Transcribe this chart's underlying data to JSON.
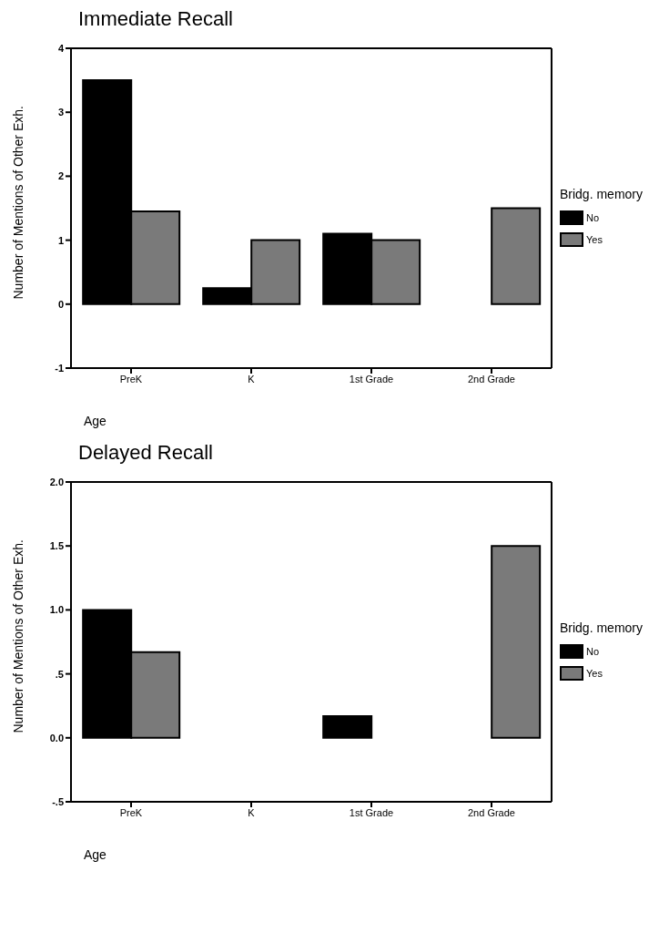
{
  "chart_data": [
    {
      "type": "bar",
      "title": "Immediate Recall",
      "xlabel": "Age",
      "ylabel": "Number of Mentions of Other Exh.",
      "legend_title": "Bridg. memory",
      "legend": "right",
      "categories": [
        "PreK",
        "K",
        "1st Grade",
        "2nd Grade"
      ],
      "series": [
        {
          "name": "No",
          "color": "#000000",
          "values": [
            3.5,
            0.25,
            1.1,
            0
          ]
        },
        {
          "name": "Yes",
          "color": "#7a7a7a",
          "values": [
            1.45,
            1.0,
            1.0,
            1.5
          ]
        }
      ],
      "ylim": [
        -1,
        4
      ],
      "yticks": [
        -1,
        0,
        1,
        2,
        3,
        4
      ],
      "grid": false
    },
    {
      "type": "bar",
      "title": "Delayed Recall",
      "xlabel": "Age",
      "ylabel": "Number of Mentions of Other Exh.",
      "legend_title": "Bridg. memory",
      "legend": "right",
      "categories": [
        "PreK",
        "K",
        "1st Grade",
        "2nd Grade"
      ],
      "series": [
        {
          "name": "No",
          "color": "#000000",
          "values": [
            1.0,
            0,
            0.17,
            0
          ]
        },
        {
          "name": "Yes",
          "color": "#7a7a7a",
          "values": [
            0.67,
            0,
            0,
            1.5
          ]
        }
      ],
      "ylim": [
        -0.5,
        2.0
      ],
      "yticks": [
        {
          "value": -0.5,
          "label": "-.5"
        },
        {
          "value": 0,
          "label": "0.0"
        },
        {
          "value": 0.5,
          "label": ".5"
        },
        {
          "value": 1.0,
          "label": "1.0"
        },
        {
          "value": 1.5,
          "label": "1.5"
        },
        {
          "value": 2.0,
          "label": "2.0"
        }
      ],
      "grid": false
    }
  ]
}
